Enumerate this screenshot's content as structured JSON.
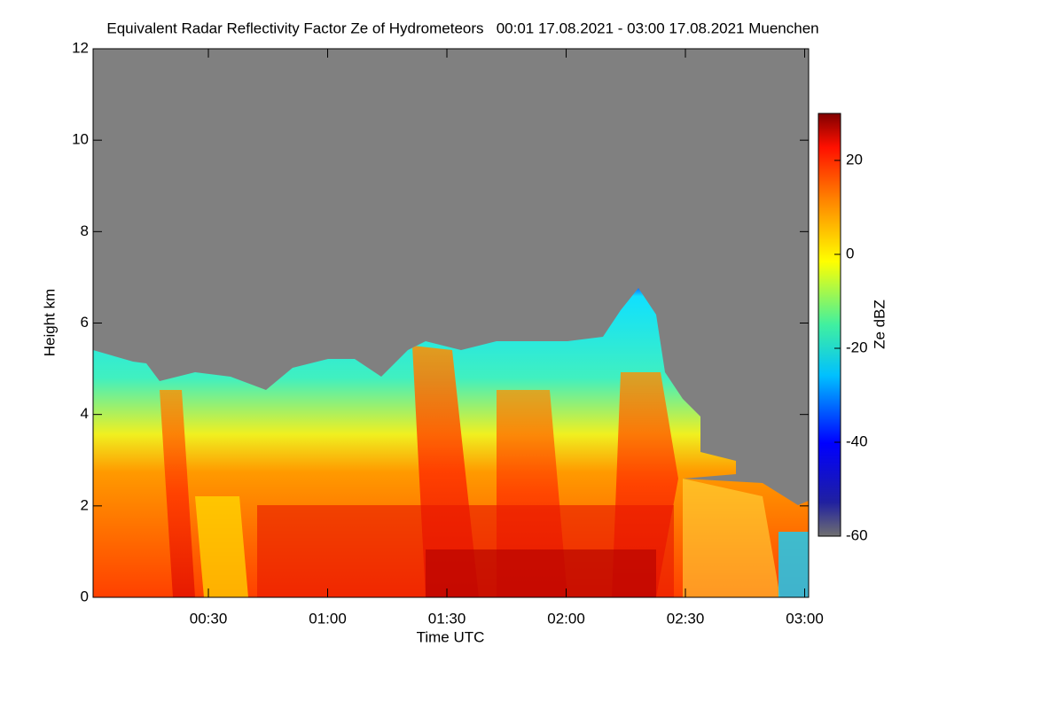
{
  "chart_data": {
    "type": "heatmap",
    "title": "Equivalent Radar Reflectivity Factor Ze of Hydrometeors   00:01 17.08.2021 - 03:00 17.08.2021 Muenchen",
    "x_label": "Time UTC",
    "y_label": "Height km",
    "xlim": [
      1,
      181
    ],
    "xticks": [
      {
        "value": 30,
        "label": "00:30"
      },
      {
        "value": 60,
        "label": "01:00"
      },
      {
        "value": 90,
        "label": "01:30"
      },
      {
        "value": 120,
        "label": "02:00"
      },
      {
        "value": 150,
        "label": "02:30"
      },
      {
        "value": 180,
        "label": "03:00"
      }
    ],
    "ylim": [
      0,
      12
    ],
    "yticks": [
      0,
      2,
      4,
      6,
      8,
      10,
      12
    ],
    "colorbar": {
      "label": "Ze dBZ",
      "lim": [
        -60,
        30
      ],
      "ticks": [
        -60,
        -40,
        -20,
        0,
        20
      ]
    }
  }
}
